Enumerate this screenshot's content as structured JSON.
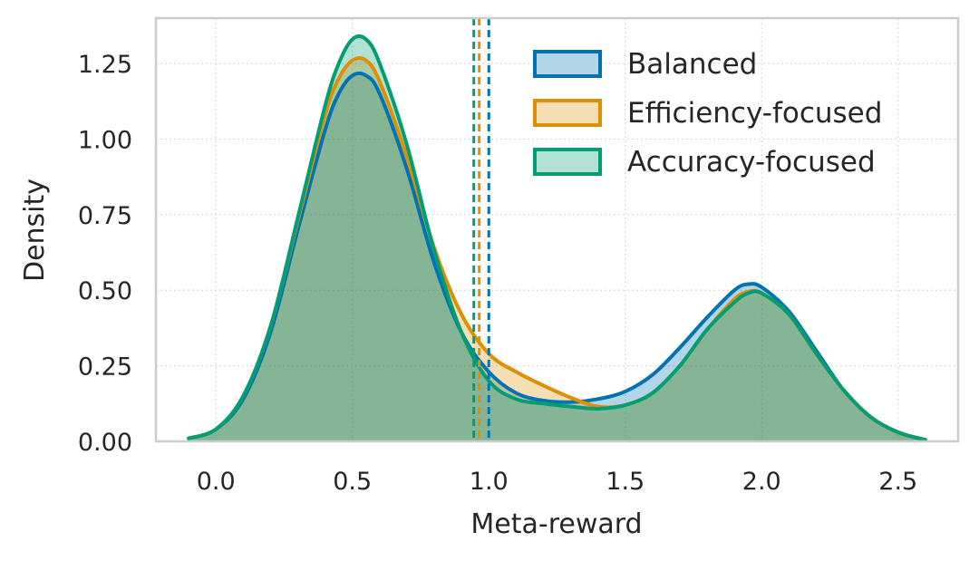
{
  "chart_data": {
    "type": "density",
    "xlabel": "Meta-reward",
    "ylabel": "Density",
    "xlim": [
      -0.22,
      2.72
    ],
    "ylim": [
      0,
      1.4
    ],
    "x_ticks": [
      0.0,
      0.5,
      1.0,
      1.5,
      2.0,
      2.5
    ],
    "x_tick_labels": [
      "0.0",
      "0.5",
      "1.0",
      "1.5",
      "2.0",
      "2.5"
    ],
    "y_ticks": [
      0.0,
      0.25,
      0.5,
      0.75,
      1.0,
      1.25
    ],
    "y_tick_labels": [
      "0.00",
      "0.25",
      "0.50",
      "0.75",
      "1.00",
      "1.25"
    ],
    "grid": true,
    "legend_position": "top-right",
    "series": [
      {
        "name": "Balanced",
        "color": "#0173b2",
        "fill_opacity": 0.3,
        "mean": 1.0,
        "points": [
          [
            -0.1,
            0.01
          ],
          [
            0.0,
            0.04
          ],
          [
            0.1,
            0.14
          ],
          [
            0.2,
            0.36
          ],
          [
            0.3,
            0.7
          ],
          [
            0.4,
            1.03
          ],
          [
            0.45,
            1.15
          ],
          [
            0.5,
            1.21
          ],
          [
            0.55,
            1.21
          ],
          [
            0.6,
            1.15
          ],
          [
            0.7,
            0.9
          ],
          [
            0.8,
            0.59
          ],
          [
            0.9,
            0.36
          ],
          [
            1.0,
            0.23
          ],
          [
            1.1,
            0.16
          ],
          [
            1.2,
            0.135
          ],
          [
            1.3,
            0.13
          ],
          [
            1.4,
            0.14
          ],
          [
            1.5,
            0.165
          ],
          [
            1.6,
            0.22
          ],
          [
            1.7,
            0.31
          ],
          [
            1.8,
            0.41
          ],
          [
            1.9,
            0.5
          ],
          [
            1.95,
            0.52
          ],
          [
            2.0,
            0.51
          ],
          [
            2.1,
            0.43
          ],
          [
            2.2,
            0.3
          ],
          [
            2.3,
            0.17
          ],
          [
            2.4,
            0.08
          ],
          [
            2.5,
            0.03
          ],
          [
            2.6,
            0.005
          ]
        ]
      },
      {
        "name": "Efficiency-focused",
        "color": "#de8f05",
        "fill_opacity": 0.3,
        "mean": 0.965,
        "points": [
          [
            -0.1,
            0.01
          ],
          [
            0.0,
            0.04
          ],
          [
            0.1,
            0.15
          ],
          [
            0.2,
            0.38
          ],
          [
            0.3,
            0.73
          ],
          [
            0.4,
            1.08
          ],
          [
            0.45,
            1.2
          ],
          [
            0.5,
            1.26
          ],
          [
            0.55,
            1.26
          ],
          [
            0.6,
            1.19
          ],
          [
            0.7,
            0.94
          ],
          [
            0.8,
            0.64
          ],
          [
            0.9,
            0.42
          ],
          [
            1.0,
            0.29
          ],
          [
            1.1,
            0.23
          ],
          [
            1.2,
            0.185
          ],
          [
            1.3,
            0.145
          ],
          [
            1.4,
            0.115
          ],
          [
            1.5,
            0.12
          ],
          [
            1.6,
            0.16
          ],
          [
            1.7,
            0.25
          ],
          [
            1.8,
            0.37
          ],
          [
            1.9,
            0.47
          ],
          [
            1.95,
            0.495
          ],
          [
            2.0,
            0.49
          ],
          [
            2.1,
            0.42
          ],
          [
            2.2,
            0.29
          ],
          [
            2.3,
            0.17
          ],
          [
            2.4,
            0.08
          ],
          [
            2.5,
            0.03
          ],
          [
            2.6,
            0.005
          ]
        ]
      },
      {
        "name": "Accuracy-focused",
        "color": "#029e73",
        "fill_opacity": 0.3,
        "mean": 0.945,
        "points": [
          [
            -0.1,
            0.01
          ],
          [
            0.0,
            0.04
          ],
          [
            0.1,
            0.15
          ],
          [
            0.2,
            0.38
          ],
          [
            0.3,
            0.74
          ],
          [
            0.4,
            1.11
          ],
          [
            0.45,
            1.25
          ],
          [
            0.5,
            1.33
          ],
          [
            0.55,
            1.33
          ],
          [
            0.6,
            1.25
          ],
          [
            0.7,
            0.98
          ],
          [
            0.8,
            0.63
          ],
          [
            0.9,
            0.36
          ],
          [
            1.0,
            0.2
          ],
          [
            1.1,
            0.14
          ],
          [
            1.2,
            0.125
          ],
          [
            1.3,
            0.115
          ],
          [
            1.4,
            0.108
          ],
          [
            1.5,
            0.12
          ],
          [
            1.6,
            0.16
          ],
          [
            1.7,
            0.25
          ],
          [
            1.8,
            0.37
          ],
          [
            1.9,
            0.46
          ],
          [
            1.95,
            0.49
          ],
          [
            2.0,
            0.49
          ],
          [
            2.1,
            0.42
          ],
          [
            2.2,
            0.29
          ],
          [
            2.3,
            0.17
          ],
          [
            2.4,
            0.08
          ],
          [
            2.5,
            0.03
          ],
          [
            2.6,
            0.005
          ]
        ]
      }
    ]
  }
}
